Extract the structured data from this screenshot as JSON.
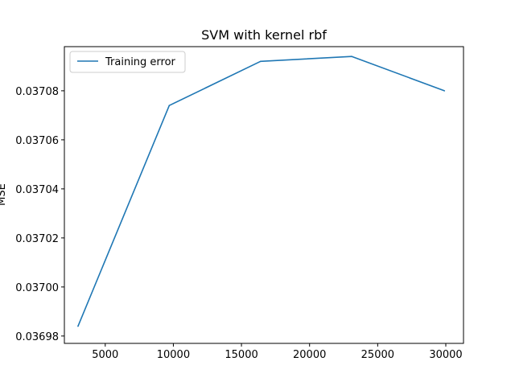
{
  "chart_data": {
    "type": "line",
    "title": "SVM with kernel rbf",
    "xlabel": "",
    "ylabel": "MSE",
    "xlim": [
      2000,
      31300
    ],
    "ylim": [
      0.036977,
      0.037098
    ],
    "x_ticks": [
      5000,
      10000,
      15000,
      20000,
      25000,
      30000
    ],
    "x_tick_labels": [
      "5000",
      "10000",
      "15000",
      "20000",
      "25000",
      "30000"
    ],
    "y_ticks": [
      0.03698,
      0.037,
      0.03702,
      0.03704,
      0.03706,
      0.03708
    ],
    "y_tick_labels": [
      "0.03698",
      "0.03700",
      "0.03702",
      "0.03704",
      "0.03706",
      "0.03708"
    ],
    "grid": false,
    "legend_position": "top-left",
    "series": [
      {
        "name": "Training error",
        "color": "#1f77b4",
        "x": [
          3000,
          9700,
          16400,
          23100,
          29900
        ],
        "y": [
          0.036984,
          0.037074,
          0.037092,
          0.037094,
          0.03708
        ]
      }
    ]
  }
}
